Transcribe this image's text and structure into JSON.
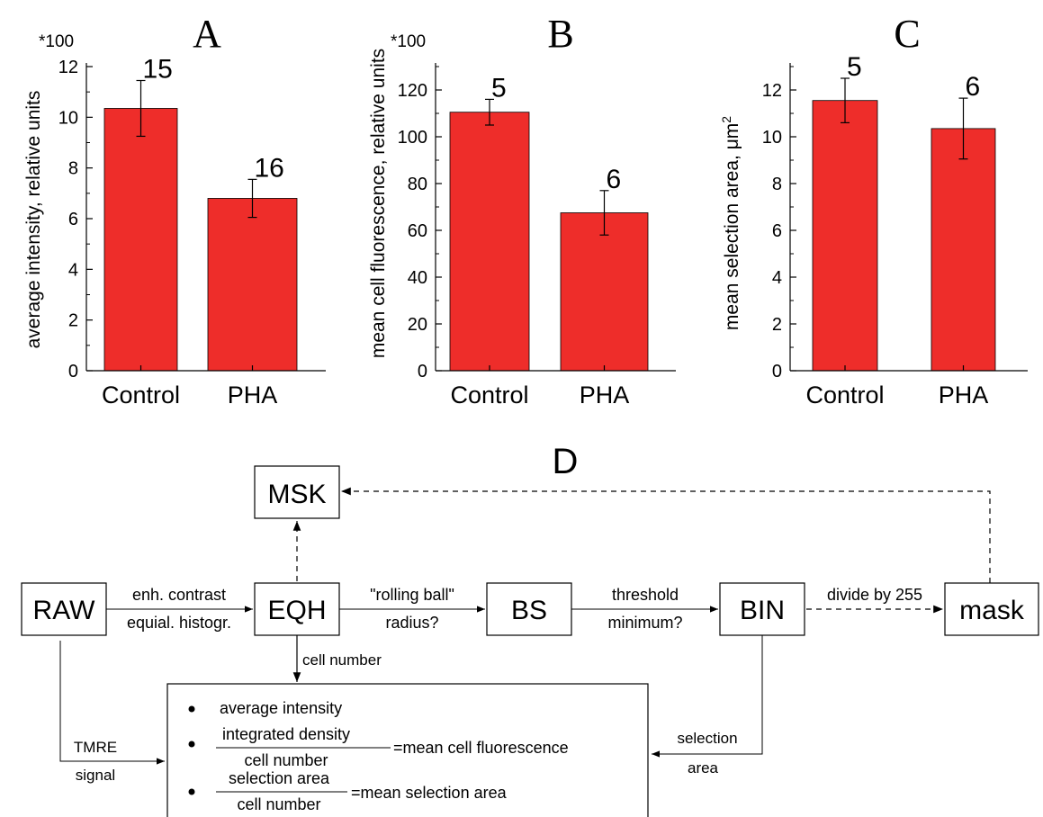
{
  "colors": {
    "bar": "#ee2d2a",
    "ink": "#000000"
  },
  "chart_data": [
    {
      "panel": "A",
      "type": "bar",
      "title": "A",
      "multiplier": "*100",
      "ylabel": "average intensity, relative units",
      "ylim": [
        0,
        12
      ],
      "yticks": [
        0,
        2,
        4,
        6,
        8,
        10,
        12
      ],
      "categories": [
        "Control",
        "PHA"
      ],
      "values": [
        10.35,
        6.8
      ],
      "errors": [
        1.1,
        0.75
      ],
      "n_labels": [
        "15",
        "16"
      ]
    },
    {
      "panel": "B",
      "type": "bar",
      "title": "B",
      "multiplier": "*100",
      "ylabel": "mean cell fluorescence, relative units",
      "ylim": [
        0,
        130
      ],
      "yticks": [
        0,
        20,
        40,
        60,
        80,
        100,
        120
      ],
      "categories": [
        "Control",
        "PHA"
      ],
      "values": [
        110.5,
        67.5
      ],
      "errors": [
        5.5,
        9.5
      ],
      "n_labels": [
        "5",
        "6"
      ]
    },
    {
      "panel": "C",
      "type": "bar",
      "title": "C",
      "multiplier": "",
      "ylabel": "mean selection area, μm",
      "ylabel_sup": "2",
      "ylim": [
        0,
        13
      ],
      "yticks": [
        0,
        2,
        4,
        6,
        8,
        10,
        12
      ],
      "categories": [
        "Control",
        "PHA"
      ],
      "values": [
        11.55,
        10.35
      ],
      "errors": [
        0.95,
        1.3
      ],
      "n_labels": [
        "5",
        "6"
      ]
    }
  ],
  "diagram": {
    "title": "D",
    "nodes": {
      "raw": "RAW",
      "eqh": "EQH",
      "bs": "BS",
      "bin": "BIN",
      "mask": "mask",
      "msk": "MSK"
    },
    "edges": {
      "raw_eqh_top": "enh. contrast",
      "raw_eqh_bottom": "equial. histogr.",
      "eqh_bs_top": "\"rolling ball\"",
      "eqh_bs_bottom": "radius?",
      "bs_bin_top": "threshold",
      "bs_bin_bottom": "minimum?",
      "bin_mask": "divide by 255",
      "eqh_results": "cell number",
      "raw_results_top": "TMRE",
      "raw_results_bottom": "signal",
      "bin_results_top": "selection",
      "bin_results_bottom": "area"
    },
    "results": {
      "item1": "average intensity",
      "item2_num": "integrated density",
      "item2_den": "cell number",
      "item2_eq": "=mean cell fluorescence",
      "item3_num": "selection area",
      "item3_den": "cell number",
      "item3_eq": "=mean selection area"
    }
  }
}
